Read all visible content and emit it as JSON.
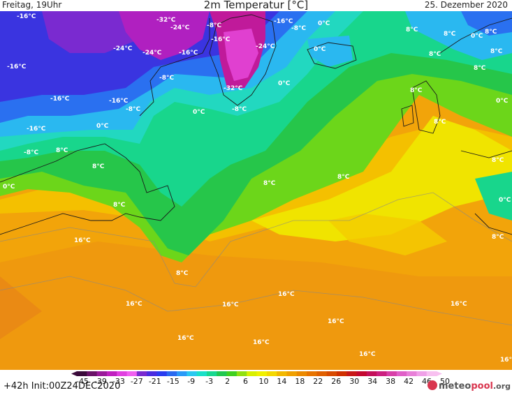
{
  "header": {
    "left": "Freitag, 19Uhr",
    "title": "2m Temperatur [°C]",
    "right": "25. Dezember 2020"
  },
  "footer": {
    "run": "+42h  Init:00Z24DEC2020",
    "brand_main": "meteo",
    "brand_accent": "pool",
    "brand_suffix": ".org"
  },
  "legend": {
    "ticks": [
      "-45",
      "-39",
      "-33",
      "-27",
      "-21",
      "-15",
      "-9",
      "-3",
      "2",
      "6",
      "10",
      "14",
      "18",
      "22",
      "26",
      "30",
      "34",
      "38",
      "42",
      "46",
      "50"
    ],
    "colors": [
      "#3a0a3a",
      "#6a1268",
      "#9a1a9a",
      "#c020c0",
      "#e040e0",
      "#f060f0",
      "#7a2ad0",
      "#4a2ce0",
      "#2a3cf0",
      "#2a6af0",
      "#2a9af8",
      "#2ac8f0",
      "#1ae0c8",
      "#18d890",
      "#20c850",
      "#40d020",
      "#90e010",
      "#d8f000",
      "#f0f000",
      "#f4d800",
      "#f2b800",
      "#f0a000",
      "#ec8a00",
      "#e87400",
      "#e06000",
      "#d84a00",
      "#d03000",
      "#c81818",
      "#c40830",
      "#c4105a",
      "#cc2080",
      "#d840a8",
      "#e060c8",
      "#e880d8",
      "#f0a0e8",
      "#f8c0f0"
    ]
  },
  "map_labels": [
    {
      "id": "m16-a",
      "text": "-16°C"
    },
    {
      "id": "m16-b",
      "text": "-16°C"
    },
    {
      "id": "m16-c",
      "text": "-16°C"
    },
    {
      "id": "m16-d",
      "text": "-16°C"
    },
    {
      "id": "m16-e",
      "text": "-16°C"
    },
    {
      "id": "m16-f",
      "text": "-16°C"
    },
    {
      "id": "m16-g",
      "text": "-16°C"
    },
    {
      "id": "m16-h",
      "text": "-16°C"
    },
    {
      "id": "m24-a",
      "text": "-24°C"
    },
    {
      "id": "m24-b",
      "text": "-24°C"
    },
    {
      "id": "m24-c",
      "text": "-24°C"
    },
    {
      "id": "m24-d",
      "text": "-24°C"
    },
    {
      "id": "m32-a",
      "text": "-32°C"
    },
    {
      "id": "m32-b",
      "text": "-32°C"
    },
    {
      "id": "m8-a",
      "text": "-8°C"
    },
    {
      "id": "m8-b",
      "text": "-8°C"
    },
    {
      "id": "m8-c",
      "text": "-8°C"
    },
    {
      "id": "m8-d",
      "text": "-8°C"
    },
    {
      "id": "m8-e",
      "text": "-8°C"
    },
    {
      "id": "m8-f",
      "text": "-8°C"
    },
    {
      "id": "z-a",
      "text": "0°C"
    },
    {
      "id": "z-b",
      "text": "0°C"
    },
    {
      "id": "z-c",
      "text": "0°C"
    },
    {
      "id": "z-d",
      "text": "0°C"
    },
    {
      "id": "z-e",
      "text": "0°C"
    },
    {
      "id": "z-f",
      "text": "0°C"
    },
    {
      "id": "z-g",
      "text": "0°C"
    },
    {
      "id": "z-h",
      "text": "0°C"
    },
    {
      "id": "z-i",
      "text": "0°C"
    },
    {
      "id": "p8-a",
      "text": "8°C"
    },
    {
      "id": "p8-b",
      "text": "8°C"
    },
    {
      "id": "p8-c",
      "text": "8°C"
    },
    {
      "id": "p8-d",
      "text": "8°C"
    },
    {
      "id": "p8-e",
      "text": "8°C"
    },
    {
      "id": "p8-f",
      "text": "8°C"
    },
    {
      "id": "p8-g",
      "text": "8°C"
    },
    {
      "id": "p8-h",
      "text": "8°C"
    },
    {
      "id": "p8-i",
      "text": "8°C"
    },
    {
      "id": "p8-j",
      "text": "8°C"
    },
    {
      "id": "p8-k",
      "text": "8°C"
    },
    {
      "id": "p8-l",
      "text": "8°C"
    },
    {
      "id": "p8-m",
      "text": "8°C"
    },
    {
      "id": "p8-n",
      "text": "8°C"
    },
    {
      "id": "p8-o",
      "text": "8°C"
    },
    {
      "id": "p8-p",
      "text": "8°C"
    },
    {
      "id": "p16-a",
      "text": "16°C"
    },
    {
      "id": "p16-b",
      "text": "16°C"
    },
    {
      "id": "p16-c",
      "text": "16°C"
    },
    {
      "id": "p16-d",
      "text": "16°C"
    },
    {
      "id": "p16-e",
      "text": "16°C"
    },
    {
      "id": "p16-f",
      "text": "16°C"
    },
    {
      "id": "p16-g",
      "text": "16°C"
    },
    {
      "id": "p16-h",
      "text": "16°C"
    },
    {
      "id": "p16-i",
      "text": "16°C"
    },
    {
      "id": "p16-j",
      "text": "16°C"
    }
  ]
}
